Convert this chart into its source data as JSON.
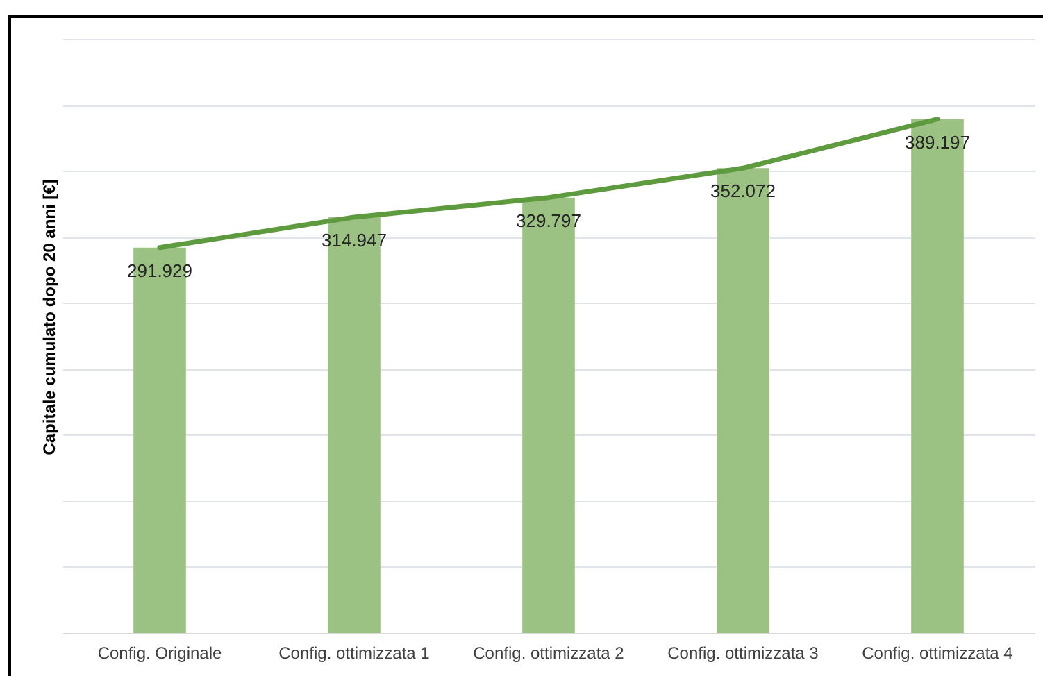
{
  "chart_data": {
    "type": "bar",
    "ylabel": "Capitale cumulato dopo 20 anni [€]",
    "categories": [
      "Config. Originale",
      "Config. ottimizzata 1",
      "Config. ottimizzata 2",
      "Config. ottimizzata 3",
      "Config. ottimizzata 4"
    ],
    "series": [
      {
        "type": "bar",
        "color": "#9cc283",
        "values": [
          291929,
          314947,
          329797,
          352072,
          389197
        ],
        "value_labels": [
          "291.929",
          "314.947",
          "329.797",
          "352.072",
          "389.197"
        ]
      },
      {
        "type": "line",
        "color": "#5e9b3f",
        "values": [
          291929,
          314947,
          329797,
          352072,
          389197
        ]
      }
    ],
    "ylim": [
      0,
      450000
    ],
    "yticks": [
      {
        "value": 0,
        "label": null
      },
      {
        "value": 50000,
        "label": null
      },
      {
        "value": 100000,
        "label": null
      },
      {
        "value": 150000,
        "label": null
      },
      {
        "value": 200000,
        "label": null
      },
      {
        "value": 250000,
        "label": null
      },
      {
        "value": 300000,
        "label": null
      },
      {
        "value": 350000,
        "label": null
      },
      {
        "value": 400000,
        "label": null
      },
      {
        "value": 450000,
        "label": null
      }
    ],
    "tick_labels": "x",
    "grid": "y"
  }
}
